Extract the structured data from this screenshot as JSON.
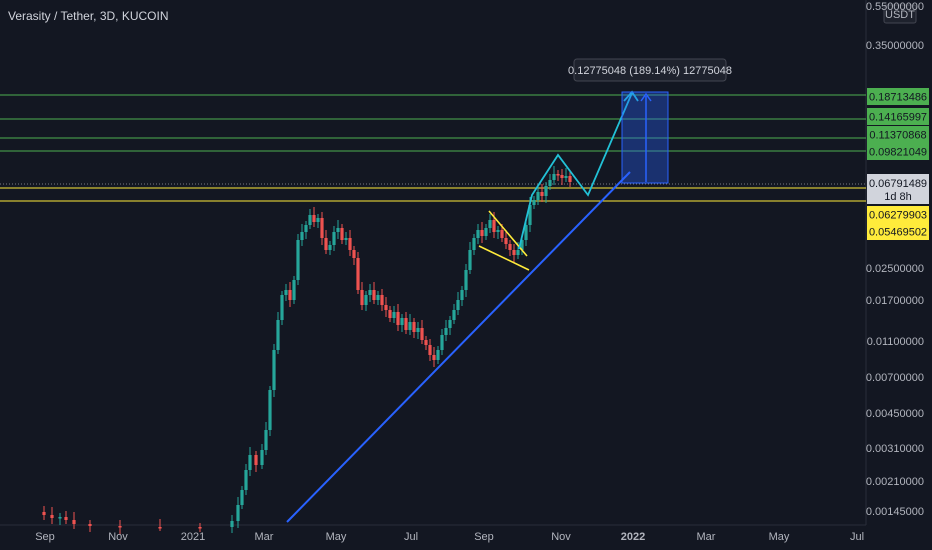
{
  "chart_data": {
    "type": "candlestick",
    "title": "Verasity / Tether, 3D, KUCOIN",
    "currency": "USDT",
    "price_scale": "log",
    "grid": false,
    "y_ticks": [
      "0.55000000",
      "0.35000000",
      "0.02500000",
      "0.01700000",
      "0.01100000",
      "0.00700000",
      "0.00450000",
      "0.00310000",
      "0.00210000",
      "0.00145000"
    ],
    "x_ticks": [
      "Sep",
      "Nov",
      "2021",
      "Mar",
      "May",
      "Jul",
      "Sep",
      "Nov",
      "2022",
      "Mar",
      "May",
      "Jul"
    ],
    "horizontal_levels": [
      {
        "value": 0.18713486,
        "label": "0.18713486",
        "color": "#4caf50",
        "text_color": "#131722"
      },
      {
        "value": 0.14165997,
        "label": "0.14165997",
        "color": "#4caf50",
        "text_color": "#131722"
      },
      {
        "value": 0.11370868,
        "label": "0.11370868",
        "color": "#4caf50",
        "text_color": "#131722"
      },
      {
        "value": 0.09821049,
        "label": "0.09821049",
        "color": "#4caf50",
        "text_color": "#131722"
      },
      {
        "value": 0.06279903,
        "label": "0.06279903",
        "color": "#ffeb3b",
        "text_color": "#131722"
      },
      {
        "value": 0.05469502,
        "label": "0.05469502",
        "color": "#ffeb3b",
        "text_color": "#131722"
      }
    ],
    "current_price": {
      "value": 0.06791489,
      "label": "0.06791489",
      "countdown": "1d 8h"
    },
    "measure_tooltip": "0.12775048 (189.14%) 12775048",
    "colors": {
      "up": "#26a69a",
      "down": "#ef5350",
      "background": "#131722",
      "trendline": "#2962ff",
      "projection": "#22c1d6",
      "flag": "#ffeb3b"
    }
  }
}
